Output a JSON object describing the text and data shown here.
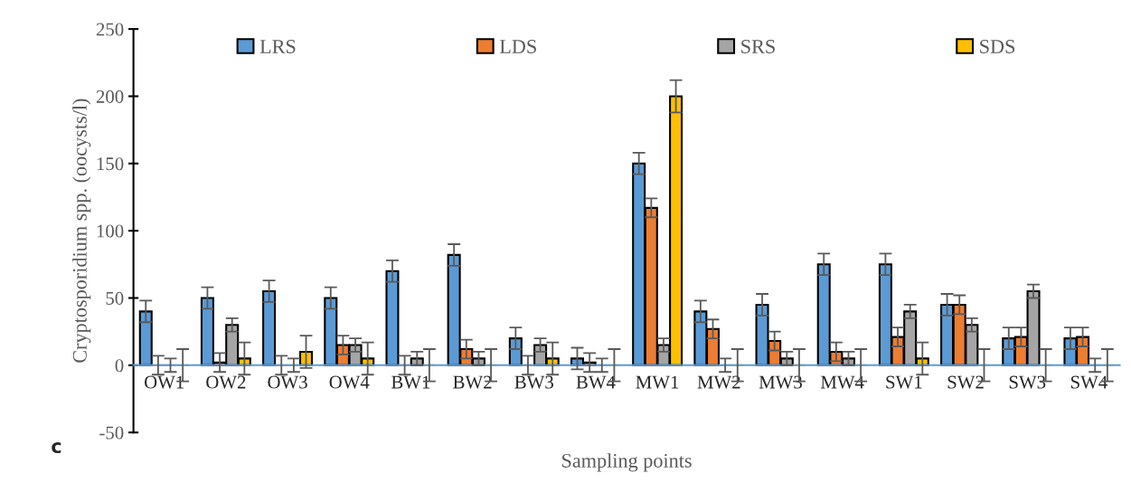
{
  "chart_data": {
    "type": "bar",
    "xlabel": "Sampling points",
    "ylabel": "Cryptosporidium spp. (oocysts/l)",
    "annotations": [
      "c"
    ],
    "categories": [
      "OW1",
      "OW2",
      "OW3",
      "OW4",
      "BW1",
      "BW2",
      "BW3",
      "BW4",
      "MW1",
      "MW2",
      "MW3",
      "MW4",
      "SW1",
      "SW2",
      "SW3",
      "SW4"
    ],
    "series": [
      {
        "name": "LRS",
        "color": "#5b9bd5",
        "values": [
          40,
          50,
          55,
          50,
          70,
          82,
          20,
          5,
          150,
          40,
          45,
          75,
          75,
          45,
          20,
          20
        ],
        "errors": [
          8,
          8,
          8,
          8,
          8,
          8,
          8,
          8,
          8,
          8,
          8,
          8,
          8,
          8,
          8,
          8
        ]
      },
      {
        "name": "LDS",
        "color": "#ed7d31",
        "values": [
          0,
          2,
          0,
          15,
          0,
          12,
          0,
          2,
          117,
          27,
          18,
          10,
          21,
          45,
          21,
          21
        ],
        "errors": [
          7,
          7,
          7,
          7,
          7,
          7,
          7,
          7,
          7,
          7,
          7,
          7,
          7,
          7,
          7,
          7
        ]
      },
      {
        "name": "SRS",
        "color": "#a5a5a5",
        "values": [
          0,
          30,
          0,
          15,
          5,
          5,
          15,
          0,
          15,
          0,
          5,
          5,
          40,
          30,
          55,
          0
        ],
        "errors": [
          5,
          5,
          5,
          5,
          5,
          5,
          5,
          5,
          5,
          5,
          5,
          5,
          5,
          5,
          5,
          5
        ]
      },
      {
        "name": "SDS",
        "color": "#ffc000",
        "values": [
          0,
          5,
          10,
          5,
          0,
          0,
          5,
          0,
          200,
          0,
          0,
          0,
          5,
          0,
          0,
          0
        ],
        "errors": [
          12,
          12,
          12,
          12,
          12,
          12,
          12,
          12,
          12,
          12,
          12,
          12,
          12,
          12,
          12,
          12
        ]
      }
    ],
    "ylim": [
      -50,
      250
    ],
    "yticks": [
      -50,
      0,
      50,
      100,
      150,
      200,
      250
    ],
    "grid": false,
    "legend": "top"
  }
}
